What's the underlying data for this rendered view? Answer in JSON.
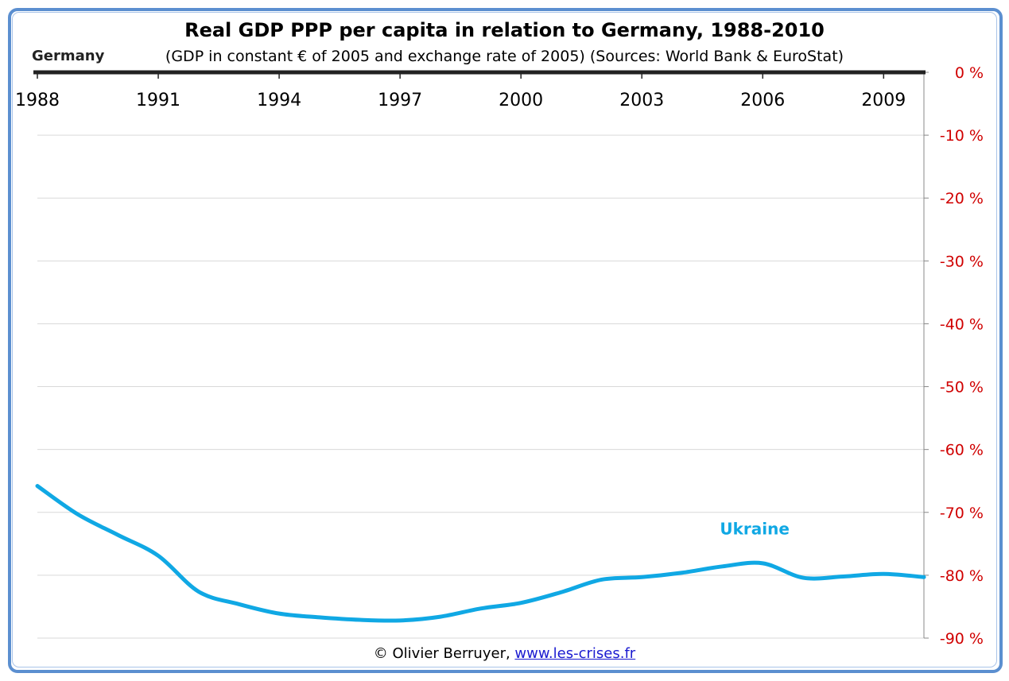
{
  "chart_data": {
    "type": "line",
    "title": "Real GDP PPP per capita in relation to Germany, 1988-2010",
    "subtitle": "(GDP in constant € of 2005 and exchange rate of 2005) (Sources: World Bank & EuroStat)",
    "reference_label": "Germany",
    "x_ticks": [
      "1988",
      "1991",
      "1994",
      "1997",
      "2000",
      "2003",
      "2006",
      "2009"
    ],
    "y_ticks": [
      "0 %",
      "-10 %",
      "-20 %",
      "-30 %",
      "-40 %",
      "-50 %",
      "-60 %",
      "-70 %",
      "-80 %",
      "-90 %"
    ],
    "xlim": [
      1988,
      2010
    ],
    "ylim": [
      -90,
      0
    ],
    "grid": true,
    "y_axis_side": "right",
    "series": [
      {
        "name": "Ukraine",
        "color": "#10a8e4",
        "x": [
          1988,
          1989,
          1990,
          1991,
          1992,
          1993,
          1994,
          1995,
          1996,
          1997,
          1998,
          1999,
          2000,
          2001,
          2002,
          2003,
          2004,
          2005,
          2006,
          2007,
          2008,
          2009,
          2010
        ],
        "values": [
          -65.8,
          -70.3,
          -73.6,
          -76.9,
          -82.6,
          -84.6,
          -86.1,
          -86.7,
          -87.1,
          -87.2,
          -86.6,
          -85.3,
          -84.4,
          -82.7,
          -80.7,
          -80.3,
          -79.6,
          -78.6,
          -78.1,
          -80.4,
          -80.2,
          -79.8,
          -80.3
        ]
      }
    ],
    "series_color": "#10a8e4",
    "tick_color_y": "#d00000",
    "reference_line_color": "#222222"
  },
  "credit": {
    "author": "© Olivier Berruyer,",
    "link": "www.les-crises.fr"
  }
}
